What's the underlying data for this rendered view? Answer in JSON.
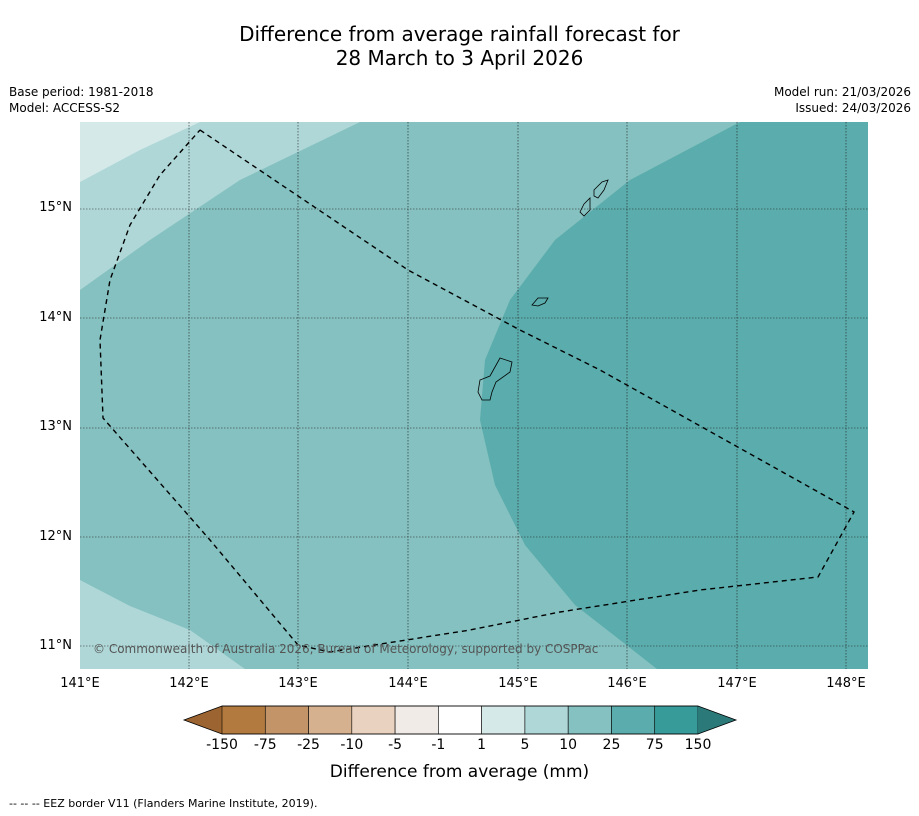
{
  "title_line1": "Difference from average rainfall forecast for",
  "title_line2": "28 March to 3 April 2026",
  "base_period": "Base period: 1981-2018",
  "model": "Model: ACCESS-S2",
  "model_run": "Model run: 21/03/2026",
  "issued": "Issued: 24/03/2026",
  "copyright": "© Commonwealth of Australia 2026, Bureau of Meteorology, supported by COSPPac",
  "lat_labels": [
    "15°N",
    "14°N",
    "13°N",
    "12°N",
    "11°N"
  ],
  "lon_labels": [
    "141°E",
    "142°E",
    "143°E",
    "144°E",
    "145°E",
    "146°E",
    "147°E",
    "148°E"
  ],
  "colorbar": {
    "title": "Difference from average (mm)",
    "ticks": [
      "-150",
      "-75",
      "-25",
      "-10",
      "-5",
      "-1",
      "1",
      "5",
      "10",
      "25",
      "75",
      "150"
    ],
    "colors": [
      "#9c6430",
      "#b37a40",
      "#c29468",
      "#d5b18f",
      "#e9d2bf",
      "#f0ebe6",
      "#ffffff",
      "#d6e9e9",
      "#afd7d7",
      "#84c1c0",
      "#5bacac",
      "#379b99",
      "#2b7a79"
    ]
  },
  "footnote": "-- -- -- EEZ border V11 (Flanders Marine Institute, 2019)."
}
